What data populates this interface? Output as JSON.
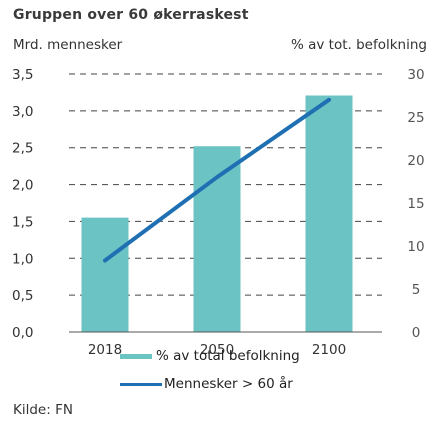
{
  "title": "Gruppen over 60 økerraskest",
  "chart_data": {
    "type": "bar",
    "categories": [
      "2018",
      "2050",
      "2100"
    ],
    "left_axis": {
      "label": "Mrd. mennesker",
      "ticks": [
        "3,5",
        "3,0",
        "2,5",
        "2,0",
        "1,5",
        "1,0",
        "0,5",
        "0,0"
      ],
      "range": [
        0,
        3.5
      ]
    },
    "right_axis": {
      "label": "% av tot. befolkning",
      "ticks": [
        "30",
        "25",
        "20",
        "15",
        "10",
        "5",
        "0"
      ],
      "range": [
        0,
        30
      ]
    },
    "series": [
      {
        "name": "% av total befolkning",
        "kind": "bar",
        "axis": "right",
        "values": [
          13.3,
          21.6,
          27.5
        ],
        "color": "#6cc3c3"
      },
      {
        "name": "Mennesker > 60 år",
        "kind": "line",
        "axis": "left",
        "values": [
          0.97,
          2.1,
          3.15
        ],
        "color": "#1f6fb3"
      }
    ],
    "grid": "dashed"
  },
  "source": "Kilde: FN"
}
